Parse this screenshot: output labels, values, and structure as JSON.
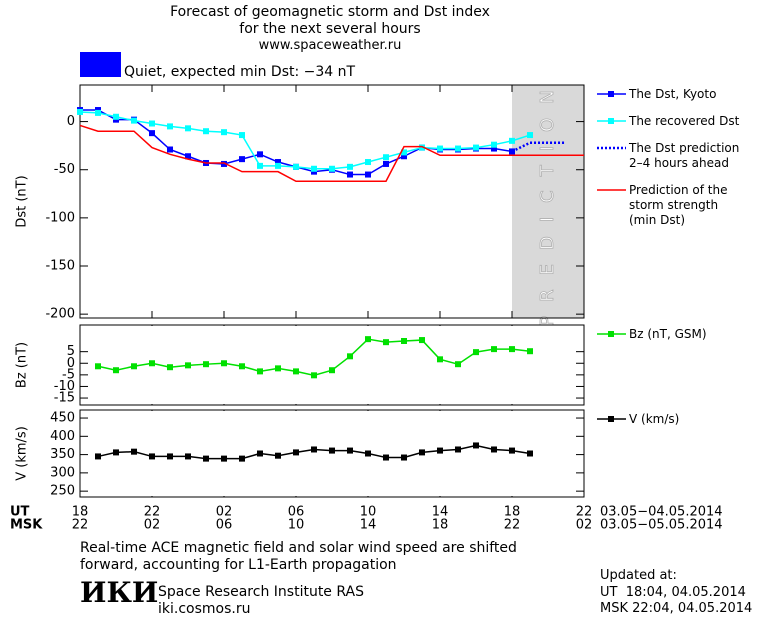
{
  "header": {
    "title": "Forecast of geomagnetic storm and Dst index\nfor the next several hours",
    "subtitle": "www.spaceweather.ru"
  },
  "status": {
    "label": "Quiet, expected min Dst: −34 nT",
    "color": "#0000ff"
  },
  "x_axis": {
    "xlim": [
      0,
      28
    ],
    "xticks": [
      0,
      4,
      8,
      12,
      16,
      20,
      24,
      28
    ],
    "rows": [
      {
        "name": "UT",
        "labels": [
          "18",
          "22",
          "02",
          "06",
          "10",
          "14",
          "18",
          "22"
        ],
        "dates": "03.05−04.05.2014"
      },
      {
        "name": "MSK",
        "labels": [
          "22",
          "02",
          "06",
          "10",
          "14",
          "18",
          "22",
          "02"
        ],
        "dates": "03.05−05.05.2014"
      }
    ]
  },
  "chart_data": [
    {
      "type": "line",
      "ylabel": "Dst (nT)",
      "ylim": [
        -204,
        38
      ],
      "yticks": [
        0,
        -50,
        -100,
        -150,
        -200
      ],
      "band": {
        "label": "PREDICTION",
        "x": [
          24,
          28
        ],
        "color": "#d9d9d9"
      },
      "series": [
        {
          "name": "The Dst, Kyoto",
          "color": "#0000ff",
          "marker": "square",
          "dash": false,
          "x": [
            0,
            1,
            2,
            3,
            4,
            5,
            6,
            7,
            8,
            9,
            10,
            11,
            12,
            13,
            14,
            15,
            16,
            17,
            18,
            19,
            20,
            21,
            22,
            23,
            24
          ],
          "values": [
            12,
            12,
            2,
            2,
            -12,
            -29,
            -36,
            -43,
            -44,
            -39,
            -34,
            -42,
            -47,
            -52,
            -50,
            -55,
            -55,
            -44,
            -36,
            -27,
            -29,
            -29,
            -28,
            -28,
            -31
          ]
        },
        {
          "name": "The recovered Dst",
          "color": "#00ffff",
          "marker": "square",
          "dash": false,
          "x": [
            0,
            1,
            2,
            3,
            4,
            5,
            6,
            7,
            8,
            9,
            10,
            11,
            12,
            13,
            14,
            15,
            16,
            17,
            18,
            19,
            20,
            21,
            22,
            23,
            24,
            25
          ],
          "values": [
            10,
            9,
            5,
            1,
            -2,
            -5,
            -7,
            -10,
            -11,
            -14,
            -46,
            -46,
            -47,
            -49,
            -49,
            -47,
            -42,
            -37,
            -32,
            -27,
            -28,
            -28,
            -27,
            -24,
            -20,
            -14
          ]
        },
        {
          "name": "The Dst prediction\n2–4 hours ahead",
          "color": "#0000ff",
          "marker": "none",
          "dash": true,
          "x": [
            24,
            25,
            27
          ],
          "values": [
            -31,
            -22,
            -22
          ]
        },
        {
          "name": "Prediction of the\nstorm strength\n(min Dst)",
          "color": "#ff0000",
          "marker": "none",
          "dash": false,
          "x": [
            0,
            1,
            3,
            4,
            5,
            6,
            7,
            8,
            9,
            11,
            12,
            17,
            18,
            19,
            20,
            28
          ],
          "values": [
            -4,
            -10,
            -10,
            -27,
            -34,
            -39,
            -43,
            -43,
            -52,
            -52,
            -62,
            -62,
            -26,
            -26,
            -35,
            -35
          ]
        }
      ]
    },
    {
      "type": "line",
      "ylabel": "Bz (nT)",
      "ylim": [
        -18,
        16.5
      ],
      "yticks": [
        5,
        0,
        -5,
        -10,
        -15
      ],
      "series": [
        {
          "name": "Bz (nT, GSM)",
          "color": "#00e000",
          "marker": "square",
          "dash": false,
          "x": [
            1,
            2,
            3,
            4,
            5,
            6,
            7,
            8,
            9,
            10,
            11,
            12,
            13,
            14,
            15,
            16,
            17,
            18,
            19,
            20,
            21,
            22,
            23,
            24,
            25
          ],
          "values": [
            -1.3,
            -3,
            -1.3,
            0,
            -1.7,
            -0.9,
            -0.4,
            0,
            -1.3,
            -3.5,
            -2.2,
            -3.5,
            -5.2,
            -3,
            3,
            10.4,
            9.1,
            9.6,
            10,
            1.7,
            -0.4,
            4.8,
            6.1,
            6.1,
            5.2
          ]
        }
      ]
    },
    {
      "type": "line",
      "ylabel": "V (km/s)",
      "ylim": [
        234,
        472
      ],
      "yticks": [
        450,
        400,
        350,
        300,
        250
      ],
      "series": [
        {
          "name": "V (km/s)",
          "color": "#000000",
          "marker": "square",
          "dash": false,
          "x": [
            1,
            2,
            3,
            4,
            5,
            6,
            7,
            8,
            9,
            10,
            11,
            12,
            13,
            14,
            15,
            16,
            17,
            18,
            19,
            20,
            21,
            22,
            23,
            24,
            25
          ],
          "values": [
            345,
            356,
            358,
            345,
            345,
            345,
            339,
            339,
            339,
            353,
            347,
            356,
            364,
            361,
            361,
            353,
            342,
            342,
            356,
            361,
            364,
            375,
            364,
            361,
            353
          ]
        }
      ]
    }
  ],
  "note": "Real-time ACE magnetic field and solar wind speed are shifted\nforward, accounting for L1-Earth propagation",
  "institute": {
    "logo": "ИКИ",
    "name": "Space Research Institute RAS",
    "url": "iki.cosmos.ru"
  },
  "updated": {
    "label": "Updated at:",
    "rows": [
      "UT  18:04, 04.05.2014",
      "MSK 22:04, 04.05.2014"
    ]
  }
}
